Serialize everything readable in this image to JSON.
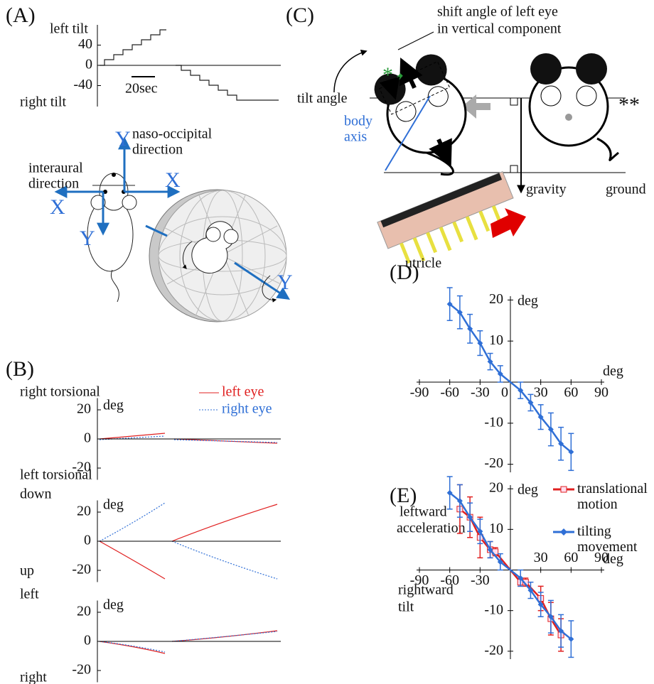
{
  "panel_a": {
    "label": "(A)",
    "y_top": "left tilt",
    "y_bottom": "right tilt",
    "ylim": [
      -80,
      80
    ],
    "yticks": [
      40,
      0,
      -40
    ],
    "scale_bar": "20sec",
    "y_up": "Y",
    "naso_1": "naso-occipital",
    "naso_2": "direction",
    "interaural_1": "interaural",
    "interaural_2": "direction",
    "x_right": "X",
    "x_left": "X",
    "y_down": "Y",
    "y_ball": "Y"
  },
  "panel_b": {
    "label": "(B)",
    "legend_left": "left eye",
    "legend_right": "right eye",
    "plots": [
      {
        "top": "right torsional",
        "unit": "deg",
        "bottom": "left torsional",
        "ylim": [
          -30,
          30
        ],
        "yticks": [
          20,
          0,
          -20
        ]
      },
      {
        "top": "down",
        "unit": "deg",
        "bottom": "up",
        "ylim": [
          -30,
          30
        ],
        "yticks": [
          20,
          0,
          -20
        ]
      },
      {
        "top": "left",
        "unit": "deg",
        "bottom": "right",
        "ylim": [
          -30,
          30
        ],
        "yticks": [
          20,
          0,
          -20
        ]
      }
    ]
  },
  "panel_c": {
    "label": "(C)",
    "shift_1": "shift angle of left eye",
    "shift_2": "in vertical component",
    "tilt": "tilt angle",
    "star1": "*",
    "star2": "**",
    "body_1": "body",
    "body_2": "axis",
    "gravity": "gravity",
    "ground": "ground",
    "utricle": "utricle"
  },
  "chart_data": [
    {
      "type": "scatter",
      "label": "(D)",
      "x_unit": "deg",
      "y_unit": "deg",
      "xlim": [
        -90,
        90
      ],
      "ylim": [
        -23,
        23
      ],
      "xticks": [
        -90,
        -60,
        -30,
        0,
        30,
        60,
        90
      ],
      "yticks": [
        -20,
        -10,
        10,
        20
      ],
      "series": [
        {
          "color": "#2f6fd6",
          "marker": "diamond",
          "x": [
            -60,
            -50,
            -40,
            -30,
            -20,
            -10,
            10,
            20,
            30,
            40,
            50,
            60
          ],
          "values": [
            19,
            17,
            13,
            9.5,
            5,
            2,
            -2,
            -5,
            -8.5,
            -11.5,
            -15,
            -17
          ],
          "errors": [
            4,
            4,
            3.5,
            3,
            2,
            2,
            2,
            2,
            3,
            4,
            4,
            4.5
          ]
        }
      ]
    },
    {
      "type": "scatter",
      "label": "(E)",
      "x_unit": "deg",
      "y_unit": "deg",
      "xlim": [
        -90,
        90
      ],
      "ylim": [
        -23,
        23
      ],
      "xticks": [
        -90,
        -60,
        -30,
        30,
        60,
        90
      ],
      "yticks": [
        -20,
        -10,
        10,
        20
      ],
      "annotation_1": "leftward",
      "annotation_2": "acceleration",
      "annotation_3": "rightward",
      "annotation_4": "tilt",
      "series": [
        {
          "name": "translational motion",
          "color": "#e02020",
          "marker": "square",
          "x": [
            -50,
            -40,
            -30,
            -20,
            -15,
            10,
            15,
            30,
            40,
            50
          ],
          "values": [
            15,
            13,
            8,
            5,
            4.5,
            -3,
            -3,
            -7,
            -12,
            -16
          ],
          "errors": [
            6,
            5,
            5,
            2,
            1,
            1,
            1,
            3,
            4,
            4
          ]
        },
        {
          "name": "tilting movement",
          "color": "#2f6fd6",
          "marker": "diamond",
          "x": [
            -60,
            -50,
            -40,
            -30,
            -20,
            -10,
            10,
            20,
            30,
            40,
            50,
            60
          ],
          "values": [
            19,
            17,
            13,
            9.5,
            5,
            2,
            -2,
            -5,
            -8.5,
            -11.5,
            -15,
            -17
          ],
          "errors": [
            4,
            4,
            3.5,
            3,
            2,
            2,
            2,
            2,
            3,
            4,
            4,
            4.5
          ]
        }
      ]
    }
  ]
}
